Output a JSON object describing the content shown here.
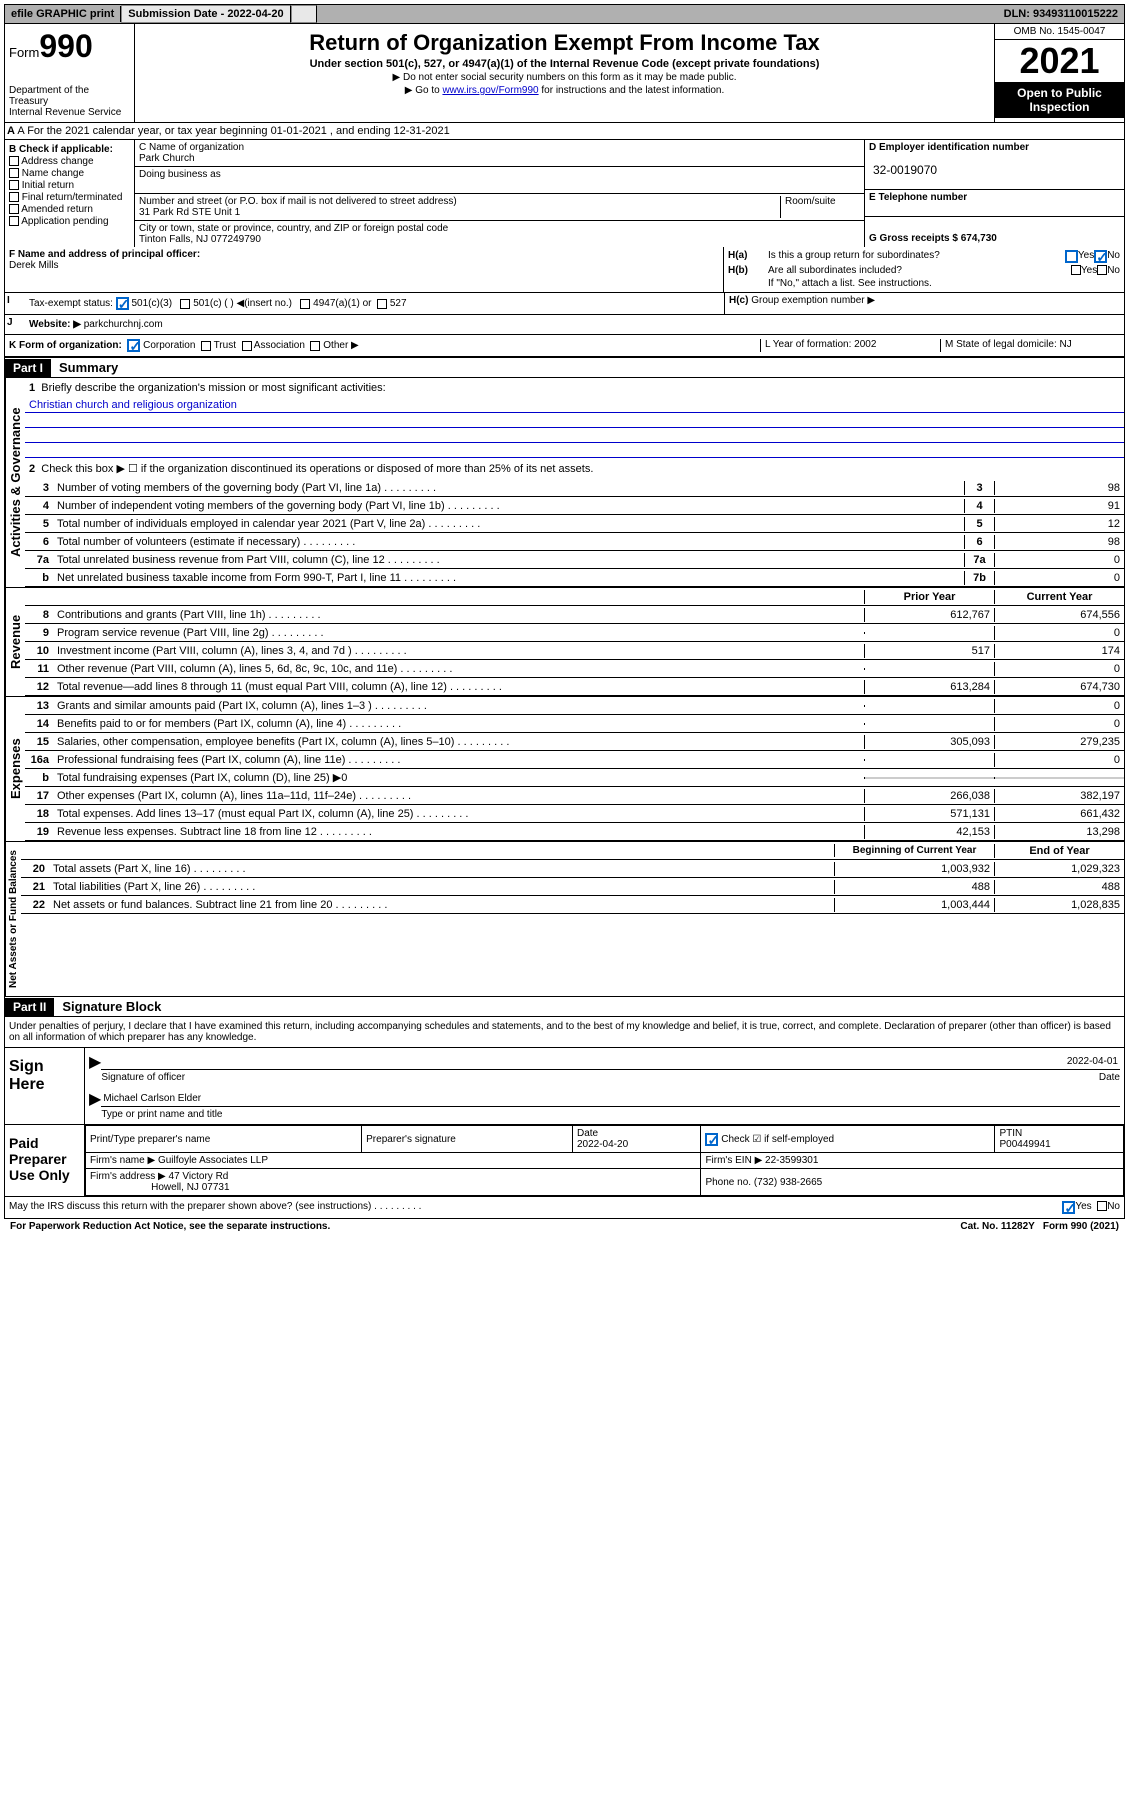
{
  "topbar": {
    "efile": "efile GRAPHIC print",
    "submission_label": "Submission Date - 2022-04-20",
    "dln": "DLN: 93493110015222"
  },
  "header": {
    "form_prefix": "Form",
    "form_num": "990",
    "dept": "Department of the Treasury\nInternal Revenue Service",
    "title": "Return of Organization Exempt From Income Tax",
    "subtitle": "Under section 501(c), 527, or 4947(a)(1) of the Internal Revenue Code (except private foundations)",
    "note1": "▶ Do not enter social security numbers on this form as it may be made public.",
    "note2_pre": "▶ Go to ",
    "note2_link": "www.irs.gov/Form990",
    "note2_post": " for instructions and the latest information.",
    "omb": "OMB No. 1545-0047",
    "year": "2021",
    "inspect": "Open to Public Inspection"
  },
  "row_a": "A For the 2021 calendar year, or tax year beginning 01-01-2021    , and ending 12-31-2021",
  "section_b": {
    "label": "B Check if applicable:",
    "opts": [
      "Address change",
      "Name change",
      "Initial return",
      "Final return/terminated",
      "Amended return",
      "Application pending"
    ]
  },
  "section_c": {
    "name_label": "C Name of organization",
    "name": "Park Church",
    "dba_label": "Doing business as",
    "addr_label": "Number and street (or P.O. box if mail is not delivered to street address)",
    "room_label": "Room/suite",
    "addr": "31 Park Rd STE Unit 1",
    "city_label": "City or town, state or province, country, and ZIP or foreign postal code",
    "city": "Tinton Falls, NJ  077249790"
  },
  "section_d": {
    "ein_label": "D Employer identification number",
    "ein": "32-0019070",
    "phone_label": "E Telephone number",
    "receipts_label": "G Gross receipts $ 674,730"
  },
  "principal": {
    "label": "F  Name and address of principal officer:",
    "name": "Derek Mills"
  },
  "ha": {
    "a_label": "H(a)",
    "a_text": "Is this a group return for subordinates?",
    "b_label": "H(b)",
    "b_text": "Are all subordinates included?",
    "b_note": "If \"No,\" attach a list. See instructions.",
    "c_label": "H(c)",
    "c_text": "Group exemption number ▶",
    "yes": "Yes",
    "no": "No"
  },
  "row_i": {
    "label": "Tax-exempt status:",
    "opt1": "501(c)(3)",
    "opt2": "501(c) (  ) ◀(insert no.)",
    "opt3": "4947(a)(1) or",
    "opt4": "527"
  },
  "row_j": {
    "label": "Website: ▶",
    "val": "parkchurchnj.com"
  },
  "row_k": {
    "label": "K Form of organization:",
    "opts": [
      "Corporation",
      "Trust",
      "Association",
      "Other ▶"
    ],
    "l_label": "L Year of formation: 2002",
    "m_label": "M State of legal domicile: NJ"
  },
  "part1": {
    "hdr": "Part I",
    "title": "Summary",
    "vert1": "Activities & Governance",
    "vert2": "Revenue",
    "vert3": "Expenses",
    "vert4": "Net Assets or Fund Balances",
    "l1": "Briefly describe the organization's mission or most significant activities:",
    "l1_val": "Christian church and religious organization",
    "l2": "Check this box ▶ ☐  if the organization discontinued its operations or disposed of more than 25% of its net assets.",
    "lines_gov": [
      {
        "n": "3",
        "t": "Number of voting members of the governing body (Part VI, line 1a)",
        "box": "3",
        "v": "98"
      },
      {
        "n": "4",
        "t": "Number of independent voting members of the governing body (Part VI, line 1b)",
        "box": "4",
        "v": "91"
      },
      {
        "n": "5",
        "t": "Total number of individuals employed in calendar year 2021 (Part V, line 2a)",
        "box": "5",
        "v": "12"
      },
      {
        "n": "6",
        "t": "Total number of volunteers (estimate if necessary)",
        "box": "6",
        "v": "98"
      },
      {
        "n": "7a",
        "t": "Total unrelated business revenue from Part VIII, column (C), line 12",
        "box": "7a",
        "v": "0"
      },
      {
        "n": "b",
        "t": "Net unrelated business taxable income from Form 990-T, Part I, line 11",
        "box": "7b",
        "v": "0"
      }
    ],
    "col_prior": "Prior Year",
    "col_current": "Current Year",
    "lines_rev": [
      {
        "n": "8",
        "t": "Contributions and grants (Part VIII, line 1h)",
        "p": "612,767",
        "c": "674,556"
      },
      {
        "n": "9",
        "t": "Program service revenue (Part VIII, line 2g)",
        "p": "",
        "c": "0"
      },
      {
        "n": "10",
        "t": "Investment income (Part VIII, column (A), lines 3, 4, and 7d )",
        "p": "517",
        "c": "174"
      },
      {
        "n": "11",
        "t": "Other revenue (Part VIII, column (A), lines 5, 6d, 8c, 9c, 10c, and 11e)",
        "p": "",
        "c": "0"
      },
      {
        "n": "12",
        "t": "Total revenue—add lines 8 through 11 (must equal Part VIII, column (A), line 12)",
        "p": "613,284",
        "c": "674,730"
      }
    ],
    "lines_exp": [
      {
        "n": "13",
        "t": "Grants and similar amounts paid (Part IX, column (A), lines 1–3 )",
        "p": "",
        "c": "0"
      },
      {
        "n": "14",
        "t": "Benefits paid to or for members (Part IX, column (A), line 4)",
        "p": "",
        "c": "0"
      },
      {
        "n": "15",
        "t": "Salaries, other compensation, employee benefits (Part IX, column (A), lines 5–10)",
        "p": "305,093",
        "c": "279,235"
      },
      {
        "n": "16a",
        "t": "Professional fundraising fees (Part IX, column (A), line 11e)",
        "p": "",
        "c": "0"
      },
      {
        "n": "b",
        "t": "Total fundraising expenses (Part IX, column (D), line 25) ▶0",
        "p": null,
        "c": null
      },
      {
        "n": "17",
        "t": "Other expenses (Part IX, column (A), lines 11a–11d, 11f–24e)",
        "p": "266,038",
        "c": "382,197"
      },
      {
        "n": "18",
        "t": "Total expenses. Add lines 13–17 (must equal Part IX, column (A), line 25)",
        "p": "571,131",
        "c": "661,432"
      },
      {
        "n": "19",
        "t": "Revenue less expenses. Subtract line 18 from line 12",
        "p": "42,153",
        "c": "13,298"
      }
    ],
    "col_begin": "Beginning of Current Year",
    "col_end": "End of Year",
    "lines_net": [
      {
        "n": "20",
        "t": "Total assets (Part X, line 16)",
        "p": "1,003,932",
        "c": "1,029,323"
      },
      {
        "n": "21",
        "t": "Total liabilities (Part X, line 26)",
        "p": "488",
        "c": "488"
      },
      {
        "n": "22",
        "t": "Net assets or fund balances. Subtract line 21 from line 20",
        "p": "1,003,444",
        "c": "1,028,835"
      }
    ]
  },
  "part2": {
    "hdr": "Part II",
    "title": "Signature Block",
    "penalty": "Under penalties of perjury, I declare that I have examined this return, including accompanying schedules and statements, and to the best of my knowledge and belief, it is true, correct, and complete. Declaration of preparer (other than officer) is based on all information of which preparer has any knowledge.",
    "sign_here": "Sign Here",
    "sig_officer": "Signature of officer",
    "sig_date": "2022-04-01",
    "date_label": "Date",
    "officer_name": "Michael Carlson Elder",
    "type_label": "Type or print name and title",
    "paid_prep": "Paid Preparer Use Only",
    "prep_name_label": "Print/Type preparer's name",
    "prep_sig_label": "Preparer's signature",
    "prep_date_label": "Date",
    "prep_date": "2022-04-20",
    "check_self": "Check ☑ if self-employed",
    "ptin_label": "PTIN",
    "ptin": "P00449941",
    "firm_name_label": "Firm's name    ▶",
    "firm_name": "Guilfoyle Associates LLP",
    "firm_ein_label": "Firm's EIN ▶",
    "firm_ein": "22-3599301",
    "firm_addr_label": "Firm's address ▶",
    "firm_addr": "47 Victory Rd",
    "firm_city": "Howell, NJ  07731",
    "firm_phone_label": "Phone no.",
    "firm_phone": "(732) 938-2665",
    "may_irs": "May the IRS discuss this return with the preparer shown above? (see instructions)"
  },
  "footer": {
    "paperwork": "For Paperwork Reduction Act Notice, see the separate instructions.",
    "cat": "Cat. No. 11282Y",
    "form": "Form 990 (2021)"
  }
}
